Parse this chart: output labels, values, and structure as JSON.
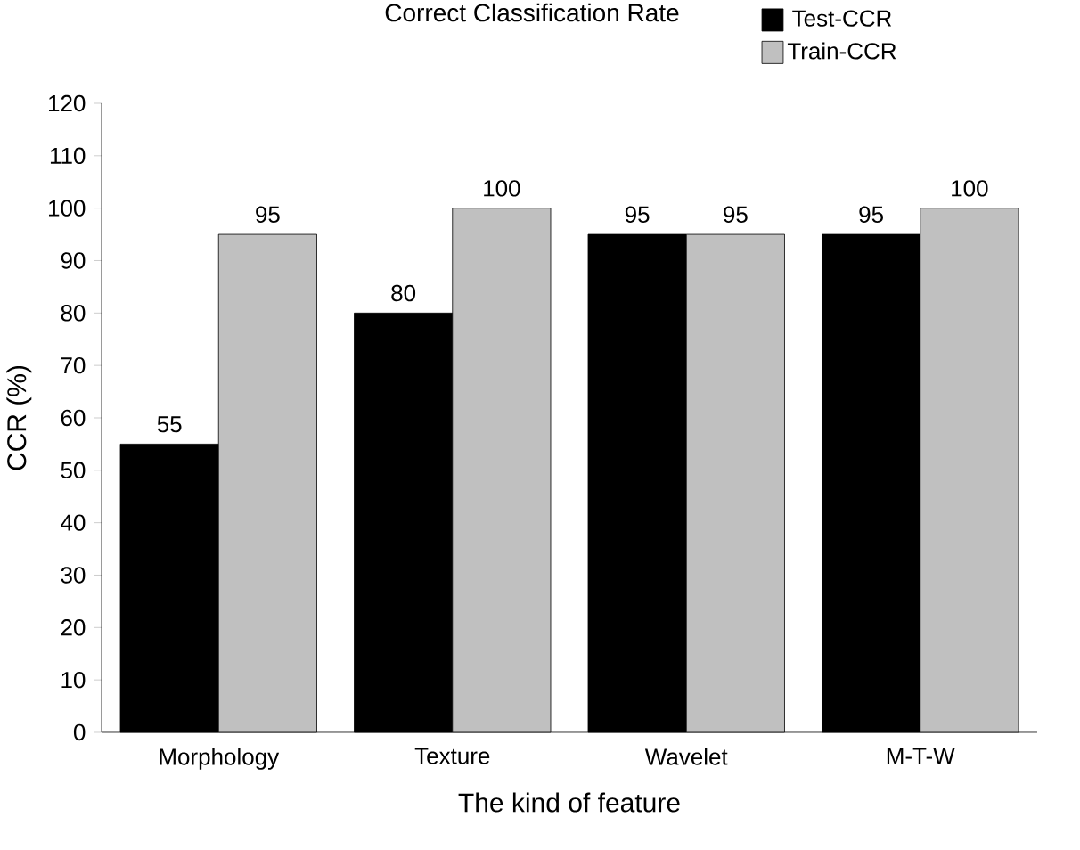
{
  "chart_data": {
    "type": "bar",
    "title": "Correct Classification Rate",
    "xlabel": "The kind of feature",
    "ylabel": "CCR (%)",
    "categories": [
      "Morphology",
      "Texture",
      "Wavelet",
      "M-T-W"
    ],
    "series": [
      {
        "name": "Test-CCR",
        "color": "#000000",
        "values": [
          55,
          80,
          95,
          95
        ]
      },
      {
        "name": "Train-CCR",
        "color": "#c0c0c0",
        "values": [
          95,
          100,
          95,
          100
        ]
      }
    ],
    "ylim": [
      0,
      120
    ],
    "yticks": [
      0,
      10,
      20,
      30,
      40,
      50,
      60,
      70,
      80,
      90,
      100,
      110,
      120
    ],
    "data_labels": true,
    "legend": "top right",
    "grid": false
  }
}
